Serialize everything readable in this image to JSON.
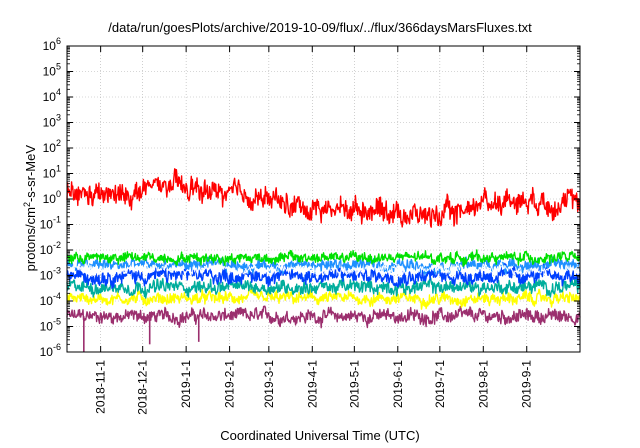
{
  "chart_data": {
    "type": "line",
    "title": "/data/run/goesPlots/archive/2019-10-09/flux/../flux/366daysMarsFluxes.txt",
    "xlabel": "Coordinated Universal Time (UTC)",
    "ylabel": {
      "prefix": "protons/cm",
      "sup": "2",
      "suffix": "-s-sr-MeV"
    },
    "x_range": [
      "2018-10-08",
      "2019-10-09"
    ],
    "y_scale": "log",
    "ylim": [
      1e-06,
      1000000.0
    ],
    "y_ticks": [
      {
        "value": 1e-06,
        "base": "10",
        "exp": "-6"
      },
      {
        "value": 1e-05,
        "base": "10",
        "exp": "-5"
      },
      {
        "value": 0.0001,
        "base": "10",
        "exp": "-4"
      },
      {
        "value": 0.001,
        "base": "10",
        "exp": "-3"
      },
      {
        "value": 0.01,
        "base": "10",
        "exp": "-2"
      },
      {
        "value": 0.1,
        "base": "10",
        "exp": "-1"
      },
      {
        "value": 1.0,
        "base": "10",
        "exp": "0"
      },
      {
        "value": 10.0,
        "base": "10",
        "exp": "1"
      },
      {
        "value": 100.0,
        "base": "10",
        "exp": "2"
      },
      {
        "value": 1000.0,
        "base": "10",
        "exp": "3"
      },
      {
        "value": 10000.0,
        "base": "10",
        "exp": "4"
      },
      {
        "value": 100000.0,
        "base": "10",
        "exp": "5"
      },
      {
        "value": 1000000.0,
        "base": "10",
        "exp": "6"
      }
    ],
    "x_ticks": [
      {
        "date": "2018-11-01",
        "label": "2018-11-1"
      },
      {
        "date": "2018-12-01",
        "label": "2018-12-1"
      },
      {
        "date": "2019-01-01",
        "label": "2019-1-1"
      },
      {
        "date": "2019-02-01",
        "label": "2019-2-1"
      },
      {
        "date": "2019-03-01",
        "label": "2019-3-1"
      },
      {
        "date": "2019-04-01",
        "label": "2019-4-1"
      },
      {
        "date": "2019-05-01",
        "label": "2019-5-1"
      },
      {
        "date": "2019-06-01",
        "label": "2019-6-1"
      },
      {
        "date": "2019-07-01",
        "label": "2019-7-1"
      },
      {
        "date": "2019-08-01",
        "label": "2019-8-1"
      },
      {
        "date": "2019-09-01",
        "label": "2019-9-1"
      }
    ],
    "grid": true,
    "series": [
      {
        "color": "#9b2f6e",
        "level_log10": -4.6,
        "noise": 0.18,
        "dips": [
          {
            "date": "2018-10-20",
            "value": 1e-06
          },
          {
            "date": "2018-12-06",
            "value": 2e-06
          },
          {
            "date": "2019-01-10",
            "value": 2.5e-06
          }
        ]
      },
      {
        "color": "#ffff00",
        "level_log10": -3.9,
        "noise": 0.16,
        "dips": []
      },
      {
        "color": "#00ad9c",
        "level_log10": -3.45,
        "noise": 0.18,
        "dips": []
      },
      {
        "color": "#0040ff",
        "level_log10": -3.0,
        "noise": 0.2,
        "dips": []
      },
      {
        "color": "#1e90ff",
        "level_log10": -2.6,
        "noise": 0.16,
        "dips": []
      },
      {
        "color": "#ffffff",
        "level_log10": -2.75,
        "noise": 0.12,
        "dips": []
      },
      {
        "color": "#00e000",
        "level_log10": -2.3,
        "noise": 0.14,
        "dips": []
      },
      {
        "color": "#ff0000",
        "level_log10": 0.1,
        "noise": 0.3,
        "profile": [
          {
            "date": "2018-10-08",
            "log10": 0.15
          },
          {
            "date": "2018-11-15",
            "log10": 0.1
          },
          {
            "date": "2018-12-15",
            "log10": 0.55
          },
          {
            "date": "2019-01-15",
            "log10": 0.3
          },
          {
            "date": "2019-02-20",
            "log10": 0.1
          },
          {
            "date": "2019-03-20",
            "log10": -0.3
          },
          {
            "date": "2019-04-10",
            "log10": -0.4
          },
          {
            "date": "2019-05-15",
            "log10": -0.35
          },
          {
            "date": "2019-06-15",
            "log10": -0.65
          },
          {
            "date": "2019-07-10",
            "log10": -0.6
          },
          {
            "date": "2019-08-01",
            "log10": -0.1
          },
          {
            "date": "2019-09-01",
            "log10": 0.0
          },
          {
            "date": "2019-10-09",
            "log10": -0.2
          }
        ]
      }
    ]
  }
}
